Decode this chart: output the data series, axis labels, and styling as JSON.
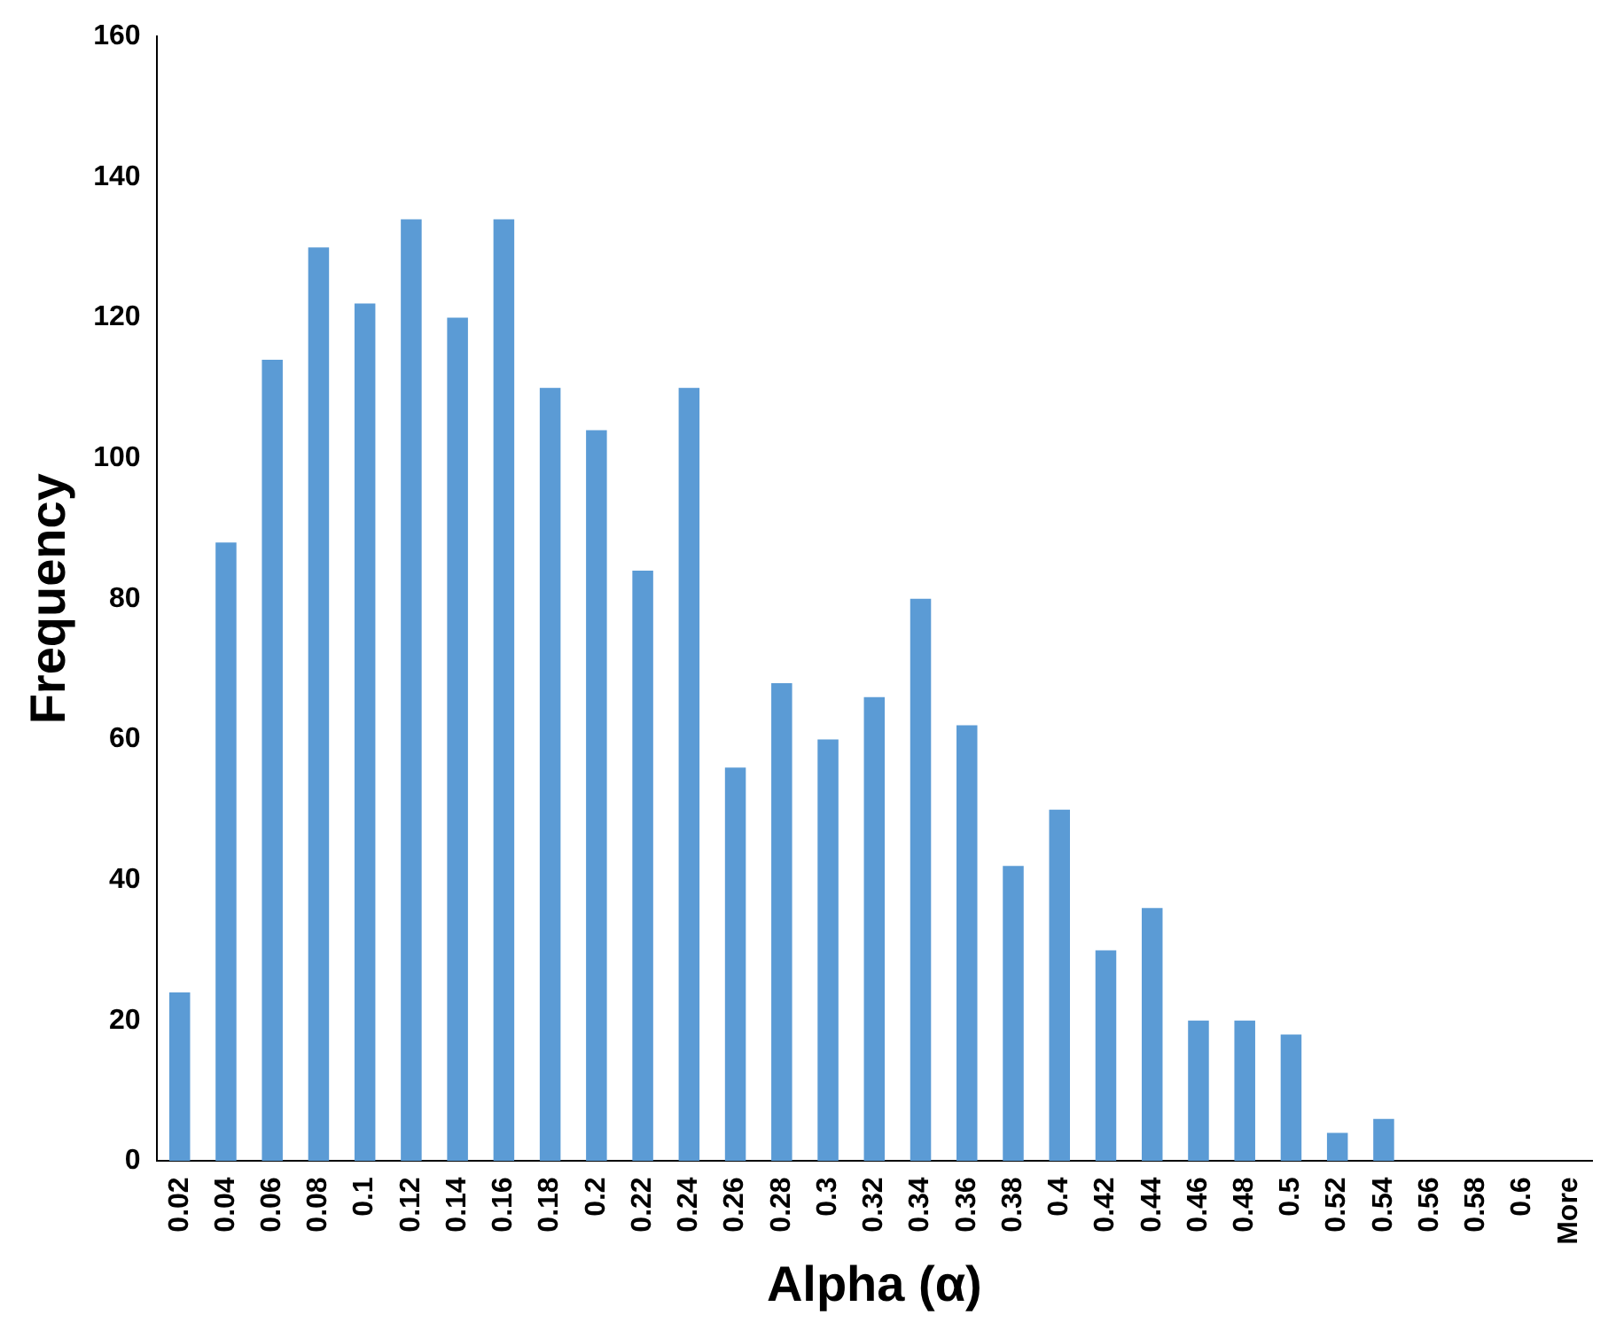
{
  "chart_data": {
    "type": "bar",
    "xlabel": "Alpha (α)",
    "ylabel": "Frequency",
    "categories": [
      "0.02",
      "0.04",
      "0.06",
      "0.08",
      "0.1",
      "0.12",
      "0.14",
      "0.16",
      "0.18",
      "0.2",
      "0.22",
      "0.24",
      "0.26",
      "0.28",
      "0.3",
      "0.32",
      "0.34",
      "0.36",
      "0.38",
      "0.4",
      "0.42",
      "0.44",
      "0.46",
      "0.48",
      "0.5",
      "0.52",
      "0.54",
      "0.56",
      "0.58",
      "0.6",
      "More"
    ],
    "values": [
      24,
      88,
      114,
      130,
      122,
      134,
      120,
      134,
      110,
      104,
      84,
      110,
      56,
      68,
      60,
      66,
      80,
      62,
      42,
      50,
      30,
      36,
      20,
      20,
      18,
      4,
      6,
      0,
      0,
      0,
      0
    ],
    "color": "#5b9bd5",
    "ylim": [
      0,
      160
    ],
    "yticks": [
      0,
      20,
      40,
      60,
      80,
      100,
      120,
      140,
      160
    ],
    "grid": false,
    "legend": false
  }
}
